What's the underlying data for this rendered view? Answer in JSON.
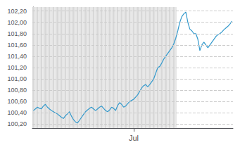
{
  "chart_data": {
    "type": "line",
    "x": [
      0,
      1,
      2,
      3,
      4,
      5,
      6,
      7,
      8,
      9,
      10,
      11,
      12,
      13,
      14,
      15,
      16,
      17,
      18,
      19,
      20,
      21,
      22,
      23,
      24,
      25,
      26,
      27,
      28,
      29,
      30,
      31,
      32,
      33,
      34,
      35,
      36,
      37,
      38,
      39,
      40,
      41,
      42,
      43,
      44,
      45,
      46,
      47,
      48,
      49,
      50,
      51,
      52,
      53,
      54,
      55,
      56,
      57,
      58,
      59,
      60,
      61,
      62,
      63,
      64,
      65,
      66,
      67,
      68,
      69,
      70,
      71,
      72,
      73,
      74,
      75,
      76,
      77,
      78,
      79,
      80,
      81,
      82,
      83,
      84,
      85,
      86,
      87,
      88,
      89,
      90,
      91,
      92,
      93,
      94,
      95,
      96,
      97,
      98,
      99
    ],
    "values": [
      100.44,
      100.47,
      100.5,
      100.48,
      100.47,
      100.52,
      100.55,
      100.5,
      100.47,
      100.44,
      100.42,
      100.4,
      100.38,
      100.35,
      100.32,
      100.3,
      100.35,
      100.38,
      100.42,
      100.34,
      100.28,
      100.24,
      100.22,
      100.27,
      100.32,
      100.37,
      100.42,
      100.45,
      100.48,
      100.5,
      100.47,
      100.44,
      100.47,
      100.5,
      100.52,
      100.48,
      100.44,
      100.42,
      100.45,
      100.5,
      100.48,
      100.44,
      100.53,
      100.58,
      100.55,
      100.5,
      100.52,
      100.56,
      100.6,
      100.62,
      100.64,
      100.68,
      100.72,
      100.78,
      100.84,
      100.88,
      100.9,
      100.86,
      100.9,
      100.95,
      101.0,
      101.1,
      101.2,
      101.22,
      101.28,
      101.35,
      101.4,
      101.45,
      101.5,
      101.55,
      101.62,
      101.72,
      101.85,
      102.0,
      102.1,
      102.15,
      102.18,
      102.0,
      101.88,
      101.85,
      101.8,
      101.8,
      101.7,
      101.5,
      101.6,
      101.65,
      101.6,
      101.55,
      101.6,
      101.65,
      101.7,
      101.75,
      101.78,
      101.8,
      101.83,
      101.87,
      101.9,
      101.93,
      101.97,
      102.02
    ],
    "color": "#3399cc",
    "xlim": [
      -0.5,
      99.5
    ],
    "xticks": [
      {
        "value": 50,
        "label": "Jul"
      }
    ],
    "ylim": [
      100.13,
      102.27
    ],
    "yticks": [
      {
        "value": 100.2,
        "label": "100,20"
      },
      {
        "value": 100.4,
        "label": "100,40"
      },
      {
        "value": 100.6,
        "label": "100,60"
      },
      {
        "value": 100.8,
        "label": "100,80"
      },
      {
        "value": 101.0,
        "label": "101,00"
      },
      {
        "value": 101.2,
        "label": "101,20"
      },
      {
        "value": 101.4,
        "label": "101,40"
      },
      {
        "value": 101.6,
        "label": "101,60"
      },
      {
        "value": 101.8,
        "label": "101,80"
      },
      {
        "value": 102.0,
        "label": "102,00"
      },
      {
        "value": 102.2,
        "label": "102,20"
      }
    ],
    "grid": true,
    "shaded_end_x": 72,
    "stripe_colors": [
      "#d8d8d8",
      "#e8e8e8"
    ]
  }
}
